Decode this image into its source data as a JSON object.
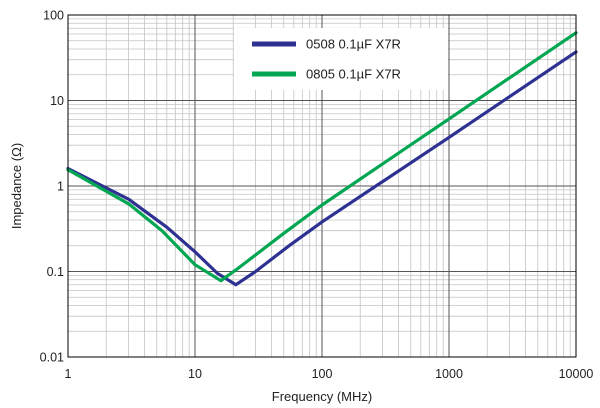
{
  "chart_data": {
    "type": "line",
    "xlabel": "Frequency (MHz)",
    "ylabel": "Impedance (Ω)",
    "x_scale": "log",
    "y_scale": "log",
    "xlim": [
      1,
      10000
    ],
    "ylim": [
      0.01,
      100
    ],
    "x_ticks": [
      {
        "value": 1,
        "label": "1"
      },
      {
        "value": 10,
        "label": "10"
      },
      {
        "value": 100,
        "label": "100"
      },
      {
        "value": 1000,
        "label": "1000"
      },
      {
        "value": 10000,
        "label": "10000"
      }
    ],
    "y_ticks": [
      {
        "value": 0.01,
        "label": "0.01"
      },
      {
        "value": 0.1,
        "label": "0.1"
      },
      {
        "value": 1,
        "label": "1"
      },
      {
        "value": 10,
        "label": "10"
      },
      {
        "value": 100,
        "label": "100"
      }
    ],
    "grid": true,
    "legend_position": "top-right",
    "series": [
      {
        "name": "0508 0.1µF X7R",
        "color": "#2e3192",
        "points": [
          [
            1,
            1.6
          ],
          [
            3,
            0.7
          ],
          [
            6,
            0.33
          ],
          [
            10,
            0.17
          ],
          [
            15,
            0.095
          ],
          [
            21,
            0.07
          ],
          [
            30,
            0.1
          ],
          [
            55,
            0.2
          ],
          [
            100,
            0.38
          ],
          [
            1000,
            3.7
          ],
          [
            10000,
            37
          ]
        ]
      },
      {
        "name": "0805 0.1µF X7R",
        "color": "#00a651",
        "points": [
          [
            1,
            1.55
          ],
          [
            3,
            0.62
          ],
          [
            5.5,
            0.3
          ],
          [
            10,
            0.12
          ],
          [
            16,
            0.078
          ],
          [
            22,
            0.11
          ],
          [
            50,
            0.28
          ],
          [
            100,
            0.6
          ],
          [
            1000,
            6.1
          ],
          [
            10000,
            62
          ]
        ]
      }
    ]
  }
}
